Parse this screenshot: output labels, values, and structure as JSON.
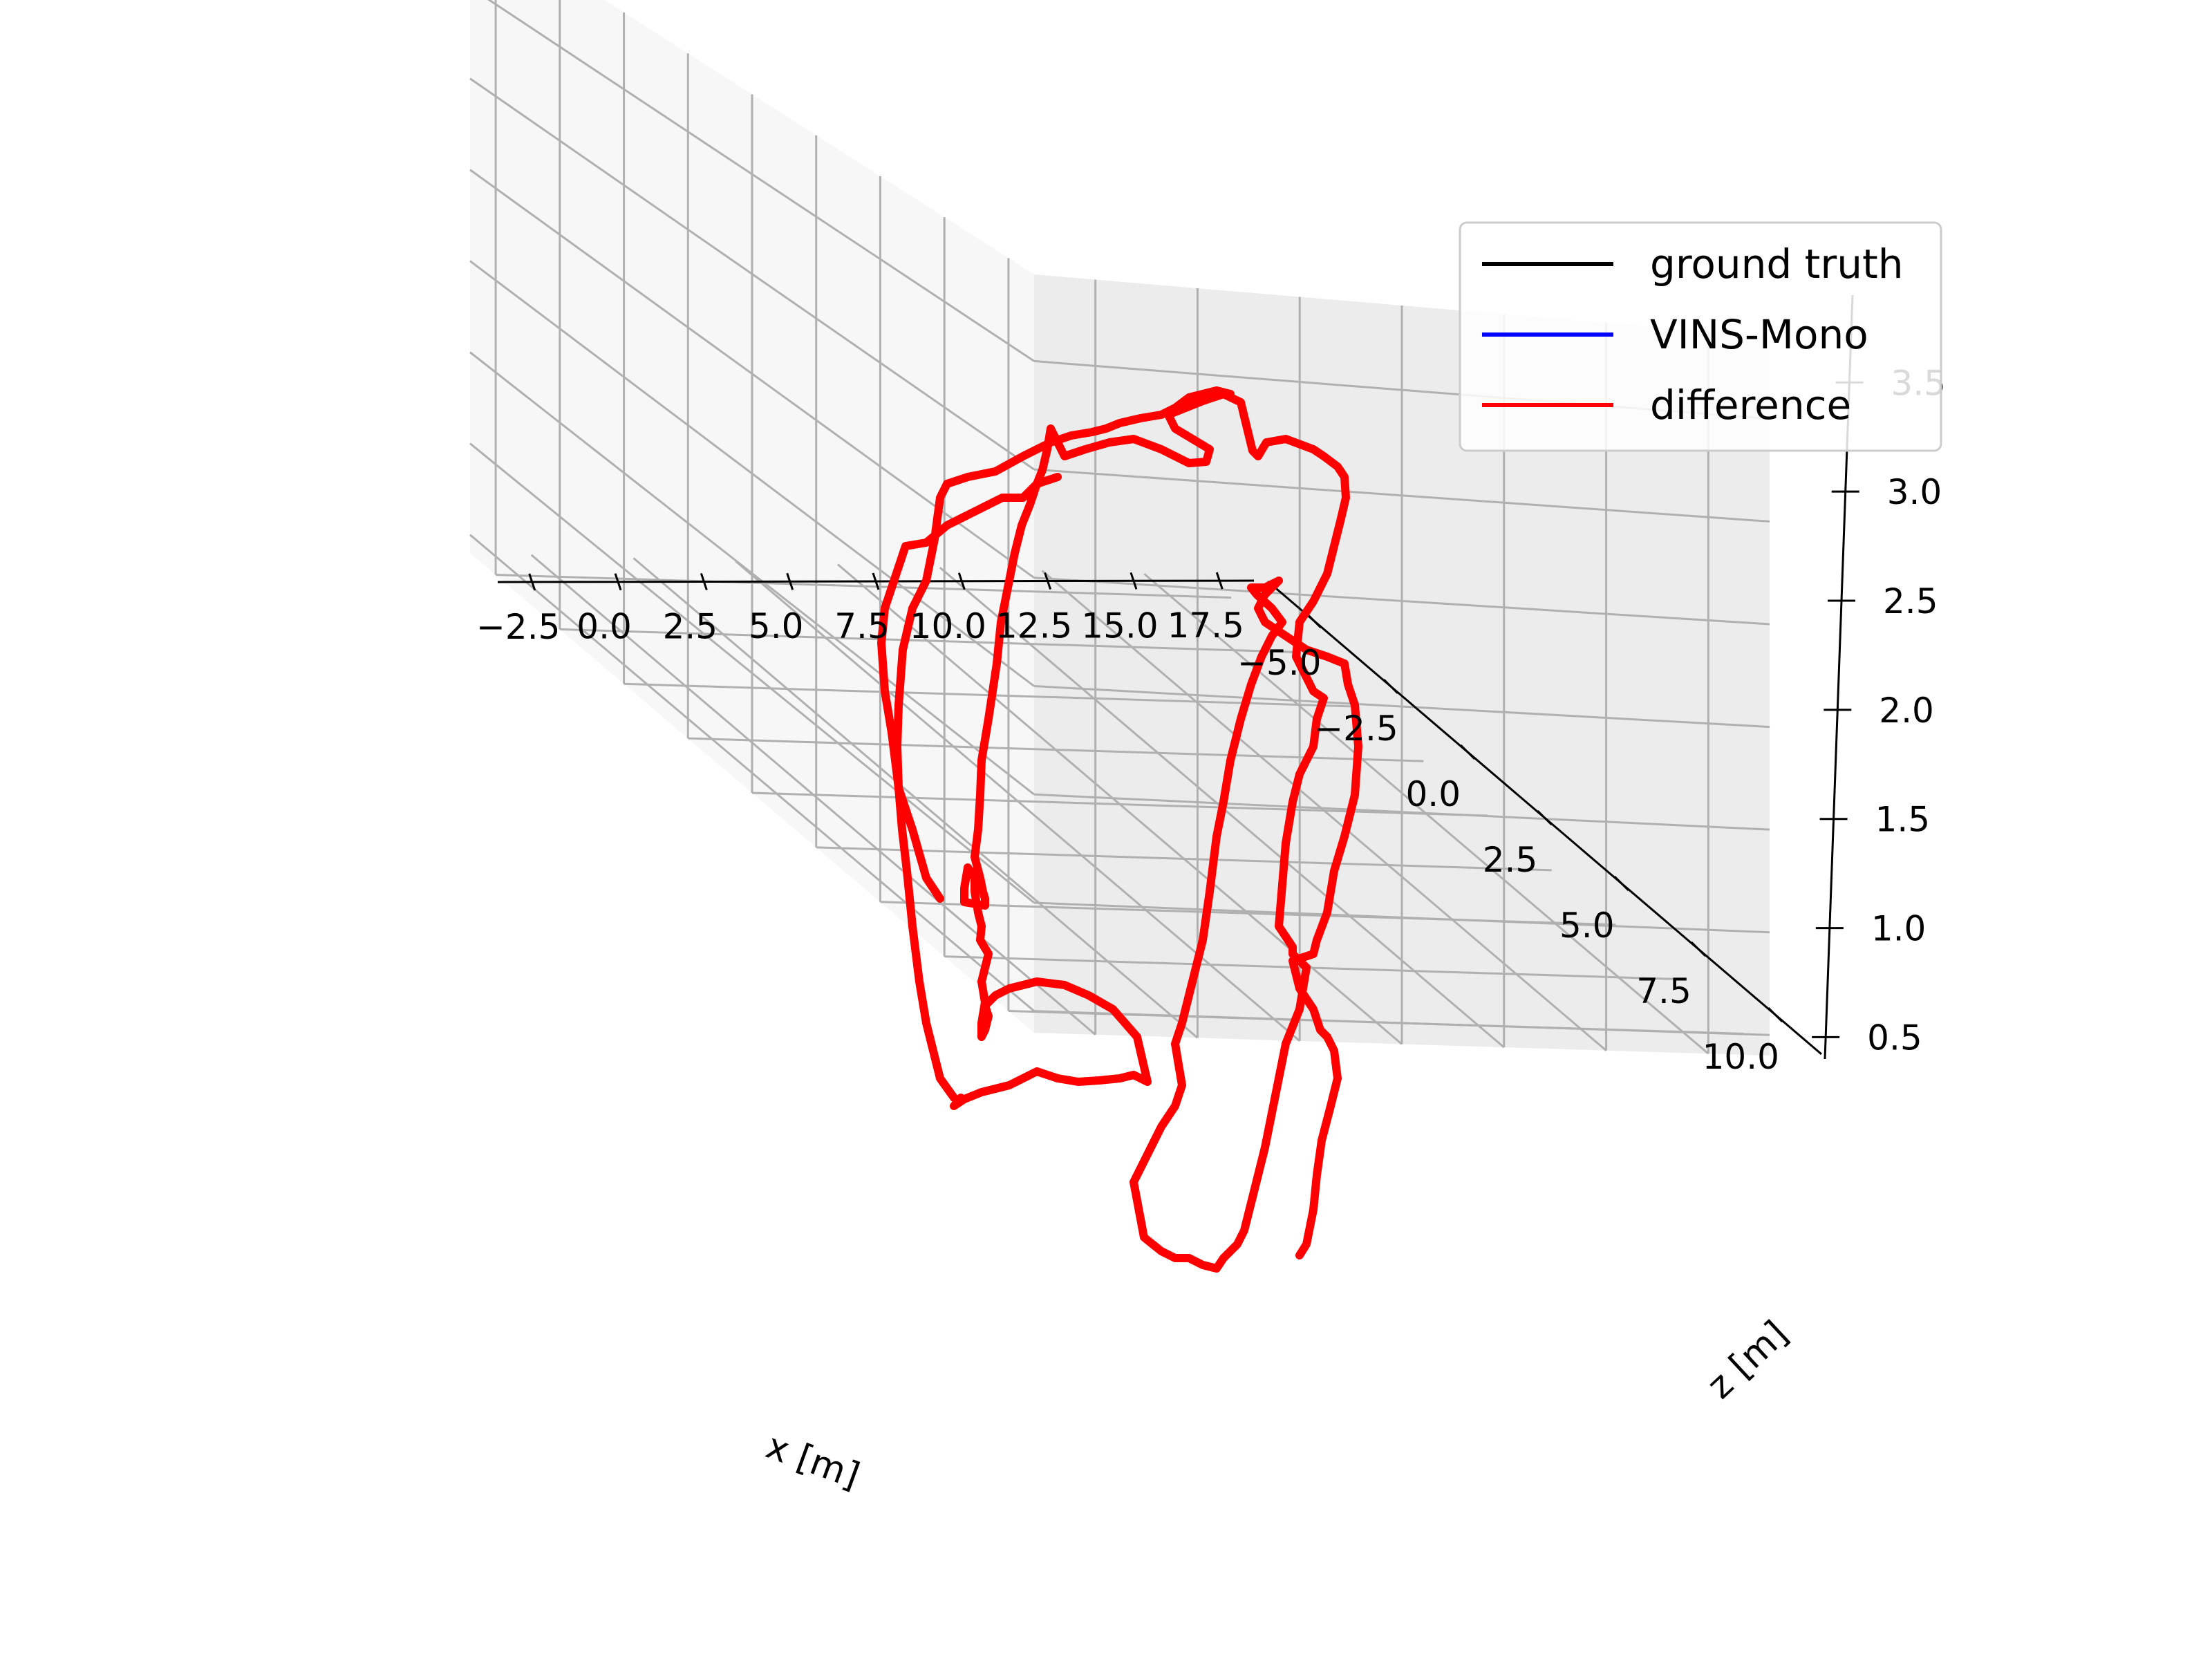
{
  "chart_data": {
    "type": "line",
    "projection": "3d",
    "xlabel": "x [m]",
    "ylabel": "",
    "zlabel": "z [m]",
    "x_ticks": [
      "−2.5",
      "0.0",
      "2.5",
      "5.0",
      "7.5",
      "10.0",
      "12.5",
      "15.0",
      "17.5"
    ],
    "y_ticks": [
      "−5.0",
      "−2.5",
      "0.0",
      "2.5",
      "5.0",
      "7.5",
      "10.0"
    ],
    "z_ticks": [
      "0.5",
      "1.0",
      "1.5",
      "2.0",
      "2.5",
      "3.0",
      "3.5"
    ],
    "xlim": [
      -3.5,
      18.5
    ],
    "ylim": [
      -6.5,
      11.5
    ],
    "zlim": [
      0.4,
      3.9
    ],
    "grid": true,
    "legend": {
      "position": "top-right",
      "entries": [
        {
          "label": "ground truth",
          "color": "#000000"
        },
        {
          "label": "VINS-Mono",
          "color": "#0000ff"
        },
        {
          "label": "difference",
          "color": "#ff0000"
        }
      ]
    },
    "series": [
      {
        "name": "ground truth",
        "color": "#000000"
      },
      {
        "name": "VINS-Mono",
        "color": "#0000ff"
      },
      {
        "name": "difference",
        "color": "#ff0000"
      }
    ]
  }
}
